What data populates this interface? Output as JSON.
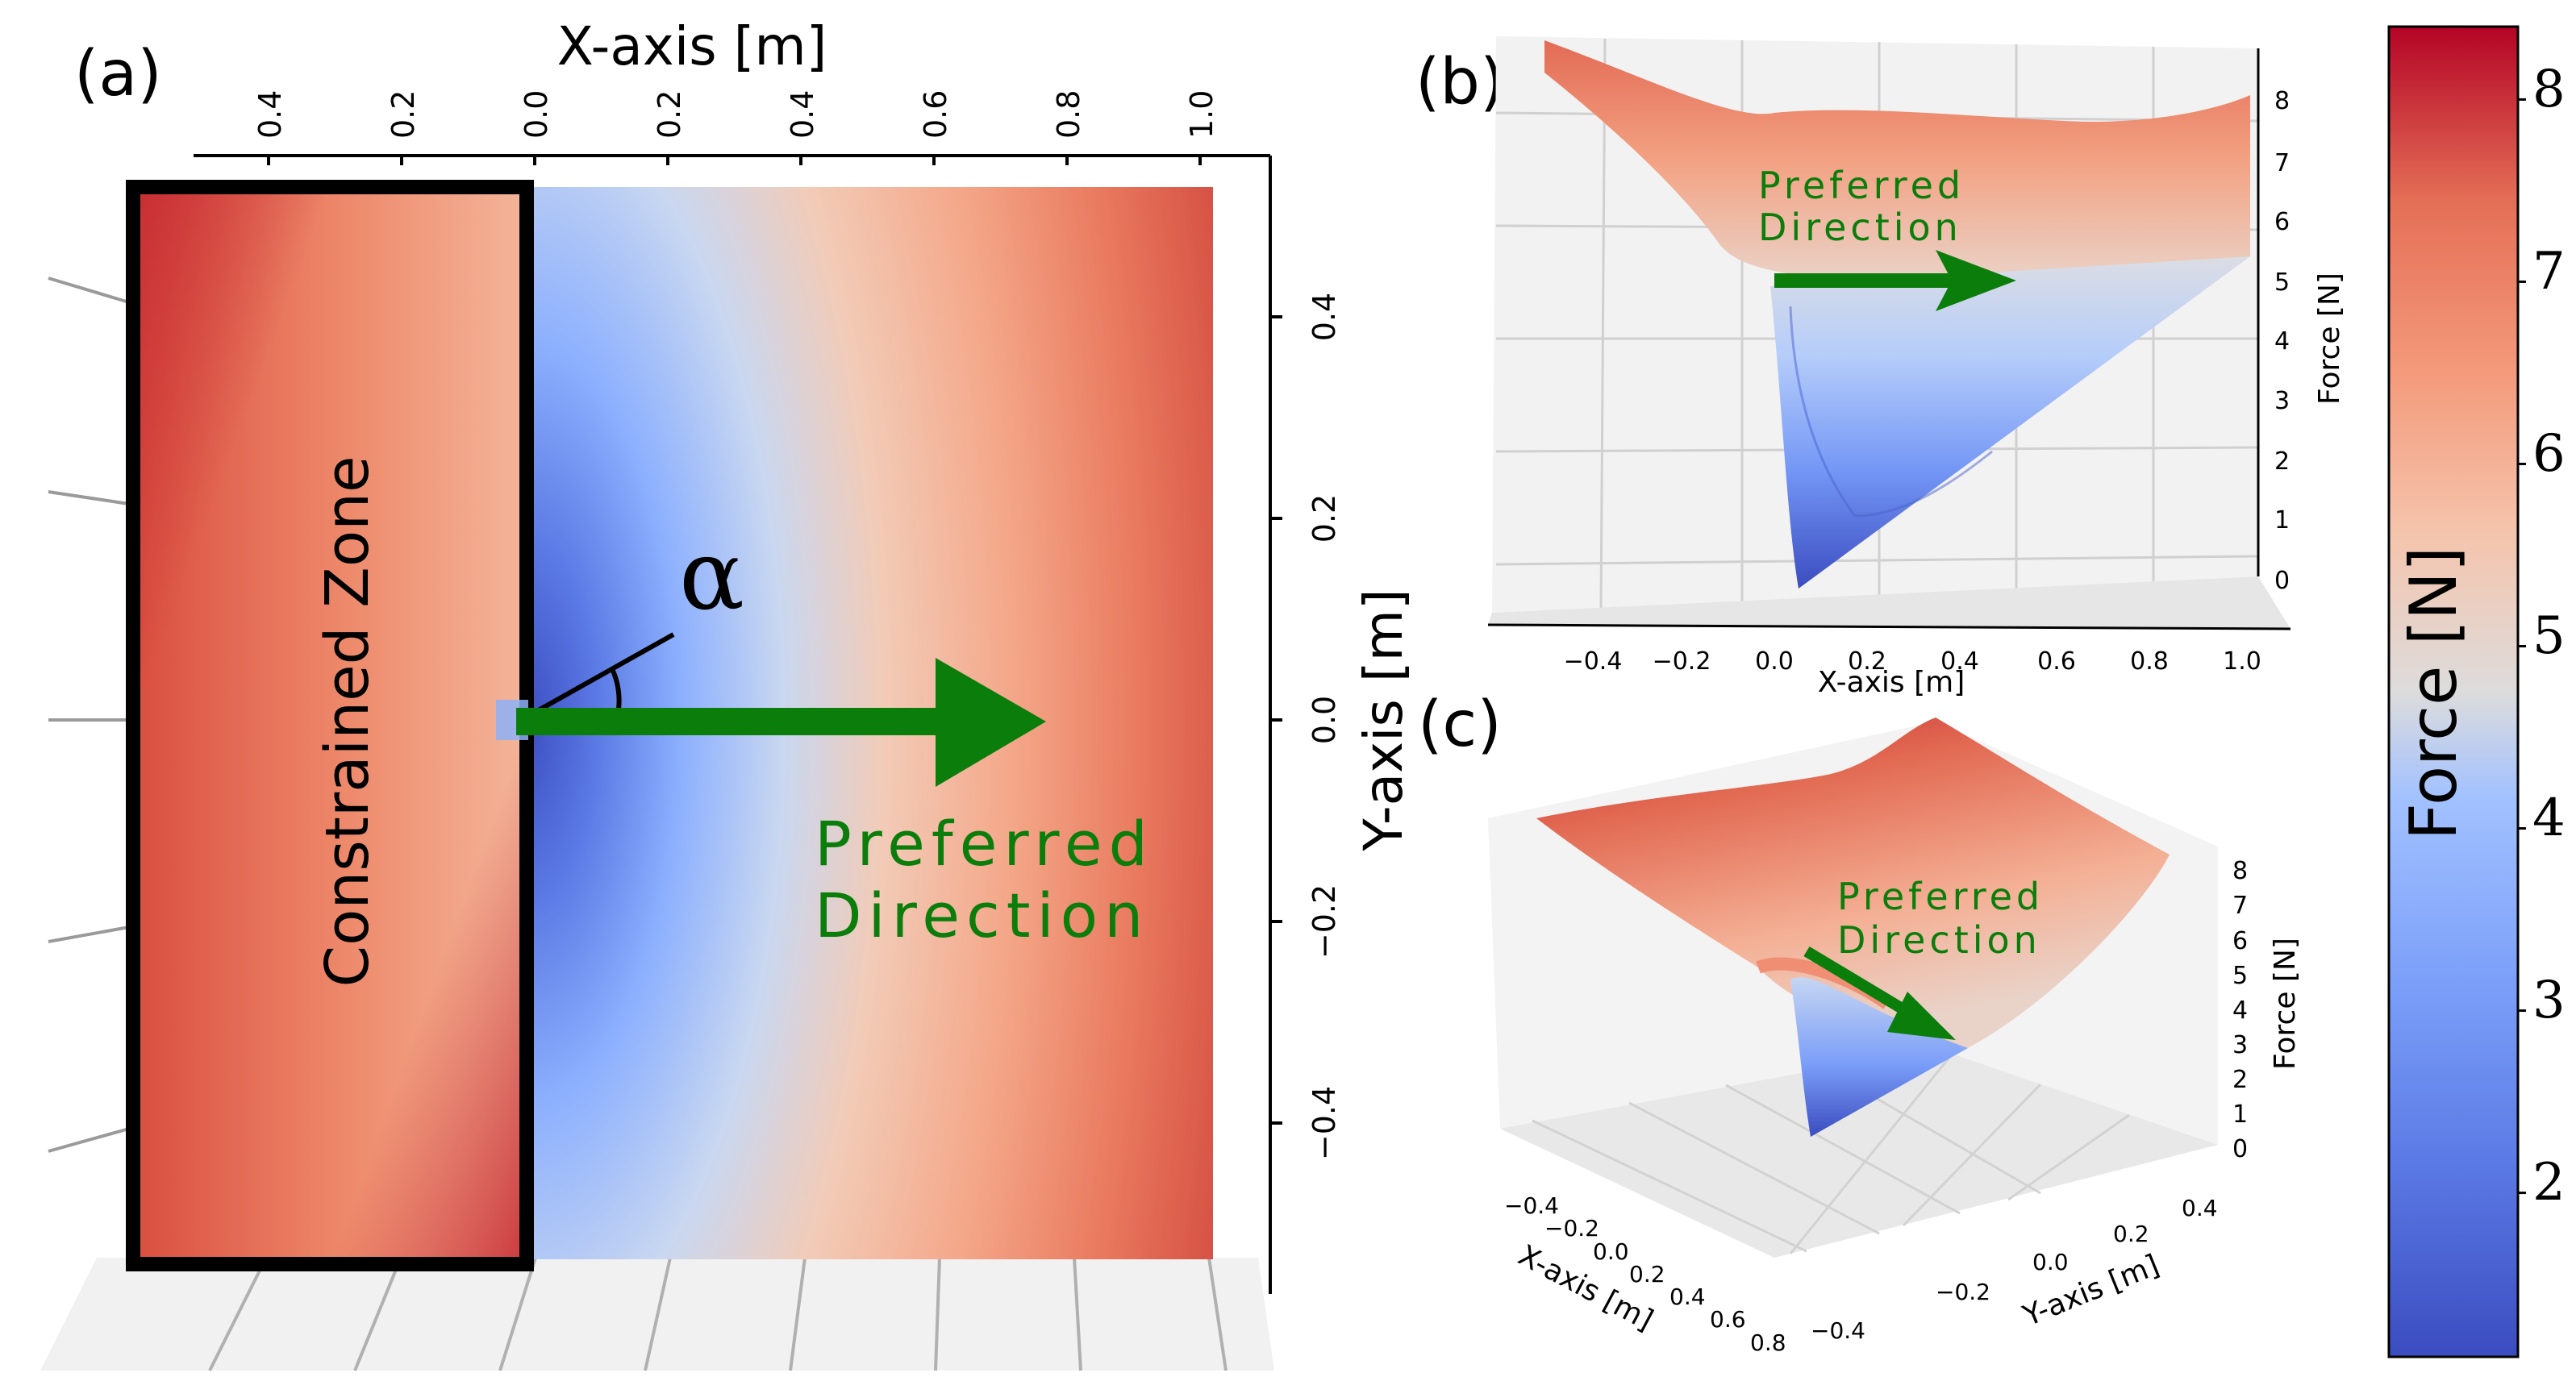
{
  "chart_data": [
    {
      "id": "a",
      "panel_label": "(a)",
      "type": "heatmap",
      "view": "top-down 3D surface",
      "xlabel": "X-axis [m]",
      "ylabel": "Y-axis [m]",
      "x_ticks": [
        "0.4",
        "0.2",
        "0.0",
        "0.2",
        "0.4",
        "0.6",
        "0.8",
        "1.0"
      ],
      "y_ticks": [
        "0.4",
        "0.2",
        "0.0",
        "−0.2",
        "−0.4"
      ],
      "xlim": [
        -0.5,
        1.0
      ],
      "ylim": [
        -0.5,
        0.5
      ],
      "zlim": [
        1.0,
        8.5
      ],
      "constrained_zone": {
        "label": "Constrained Zone",
        "x_range": [
          -0.5,
          0.0
        ],
        "y_range": [
          -0.5,
          0.5
        ]
      },
      "minimum_force_point": {
        "x": 0.0,
        "y": 0.0,
        "force": 1.1
      },
      "edge_force": 6.8,
      "corner_force": 8.3,
      "arrow": {
        "label_line1": "Preferred",
        "label_line2": "Direction",
        "from": [
          0.0,
          0.0
        ],
        "to": [
          0.75,
          0.0
        ]
      },
      "angle_symbol": "α"
    },
    {
      "id": "b",
      "panel_label": "(b)",
      "type": "area",
      "view": "3D surface, front elevation",
      "xlabel": "X-axis [m]",
      "zlabel": "Force [N]",
      "x_ticks": [
        "−0.4",
        "−0.2",
        "0.0",
        "0.2",
        "0.4",
        "0.6",
        "0.8",
        "1.0"
      ],
      "z_ticks": [
        "0",
        "1",
        "2",
        "3",
        "4",
        "5",
        "6",
        "7",
        "8"
      ],
      "xlim": [
        -0.5,
        1.0
      ],
      "zlim": [
        0,
        8.5
      ],
      "arrow": {
        "label_line1": "Preferred",
        "label_line2": "Direction"
      }
    },
    {
      "id": "c",
      "panel_label": "(c)",
      "type": "area",
      "view": "3D surface, oblique",
      "xlabel": "X-axis [m]",
      "ylabel": "Y-axis [m]",
      "zlabel": "Force [N]",
      "x_ticks": [
        "−0.4",
        "−0.2",
        "0.0",
        "0.2",
        "0.4",
        "0.6",
        "0.8"
      ],
      "y_ticks": [
        "−0.4",
        "−0.2",
        "0.0",
        "0.2",
        "0.4"
      ],
      "z_ticks": [
        "0",
        "1",
        "2",
        "3",
        "4",
        "5",
        "6",
        "7",
        "8"
      ],
      "arrow": {
        "label_line1": "Preferred",
        "label_line2": "Direction"
      }
    },
    {
      "id": "colorbar",
      "type": "colorbar",
      "label": "Force [N]",
      "colormap": "coolwarm",
      "range": [
        1.1,
        8.4
      ],
      "ticks": [
        "2",
        "3",
        "4",
        "5",
        "6",
        "7",
        "8"
      ]
    }
  ],
  "colors": {
    "arrow": "#0a7d0a",
    "cold": "#3b4cc0",
    "mid": "#dddcdc",
    "hot": "#b40426",
    "zone_border": "#000000"
  }
}
